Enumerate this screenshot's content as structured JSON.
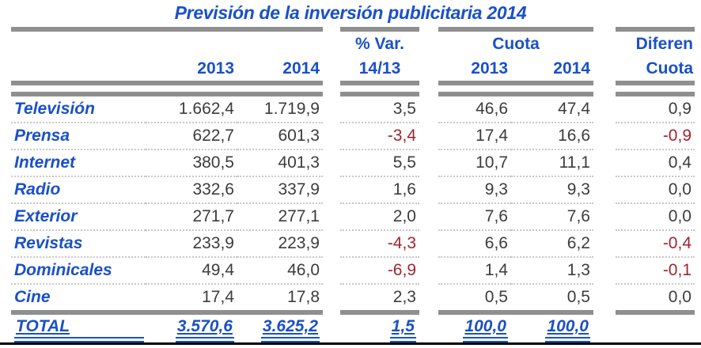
{
  "title": "Previsión de la inversión publicitaria 2014",
  "colors": {
    "accent_blue": "#1A50C8",
    "negative_red": "#A02430",
    "bar_gray": "#8F8F8F",
    "number_gray": "#3C3C3C"
  },
  "header": {
    "y2013": "2013",
    "y2014": "2014",
    "var_top": "% Var.",
    "var_bottom": "14/13",
    "cuota_group": "Cuota",
    "cuota_2013": "2013",
    "cuota_2014": "2014",
    "diferen_top": "Diferen",
    "diferen_bottom": "Cuota"
  },
  "table": {
    "rows": [
      {
        "label": "Televisión",
        "v2013": "1.662,4",
        "v2014": "1.719,9",
        "var": "3,5",
        "c2013": "46,6",
        "c2014": "47,4",
        "dif": "0,9"
      },
      {
        "label": "Prensa",
        "v2013": "622,7",
        "v2014": "601,3",
        "var": "-3,4",
        "c2013": "17,4",
        "c2014": "16,6",
        "dif": "-0,9"
      },
      {
        "label": "Internet",
        "v2013": "380,5",
        "v2014": "401,3",
        "var": "5,5",
        "c2013": "10,7",
        "c2014": "11,1",
        "dif": "0,4"
      },
      {
        "label": "Radio",
        "v2013": "332,6",
        "v2014": "337,9",
        "var": "1,6",
        "c2013": "9,3",
        "c2014": "9,3",
        "dif": "0,0"
      },
      {
        "label": "Exterior",
        "v2013": "271,7",
        "v2014": "277,1",
        "var": "2,0",
        "c2013": "7,6",
        "c2014": "7,6",
        "dif": "0,0"
      },
      {
        "label": "Revistas",
        "v2013": "233,9",
        "v2014": "223,9",
        "var": "-4,3",
        "c2013": "6,6",
        "c2014": "6,2",
        "dif": "-0,4"
      },
      {
        "label": "Dominicales",
        "v2013": "49,4",
        "v2014": "46,0",
        "var": "-6,9",
        "c2013": "1,4",
        "c2014": "1,3",
        "dif": "-0,1"
      },
      {
        "label": "Cine",
        "v2013": "17,4",
        "v2014": "17,8",
        "var": "2,3",
        "c2013": "0,5",
        "c2014": "0,5",
        "dif": "0,0"
      }
    ],
    "total": {
      "label": "TOTAL",
      "v2013": "3.570,6",
      "v2014": "3.625,2",
      "var": "1,5",
      "c2013": "100,0",
      "c2014": "100,0",
      "dif": ""
    }
  },
  "chart_data": {
    "type": "table",
    "title": "Previsión de la inversión publicitaria 2014",
    "columns": [
      "",
      "2013",
      "2014",
      "% Var. 14/13",
      "Cuota 2013",
      "Cuota 2014",
      "Diferen Cuota"
    ],
    "rows": [
      [
        "Televisión",
        1662.4,
        1719.9,
        3.5,
        46.6,
        47.4,
        0.9
      ],
      [
        "Prensa",
        622.7,
        601.3,
        -3.4,
        17.4,
        16.6,
        -0.9
      ],
      [
        "Internet",
        380.5,
        401.3,
        5.5,
        10.7,
        11.1,
        0.4
      ],
      [
        "Radio",
        332.6,
        337.9,
        1.6,
        9.3,
        9.3,
        0.0
      ],
      [
        "Exterior",
        271.7,
        277.1,
        2.0,
        7.6,
        7.6,
        0.0
      ],
      [
        "Revistas",
        233.9,
        223.9,
        -4.3,
        6.6,
        6.2,
        -0.4
      ],
      [
        "Dominicales",
        49.4,
        46.0,
        -6.9,
        1.4,
        1.3,
        -0.1
      ],
      [
        "Cine",
        17.4,
        17.8,
        2.3,
        0.5,
        0.5,
        0.0
      ]
    ],
    "total_row": [
      "TOTAL",
      3570.6,
      3625.2,
      1.5,
      100.0,
      100.0,
      null
    ],
    "notes": "Negative values rendered in dark red; TOTAL row blue with double underline"
  }
}
